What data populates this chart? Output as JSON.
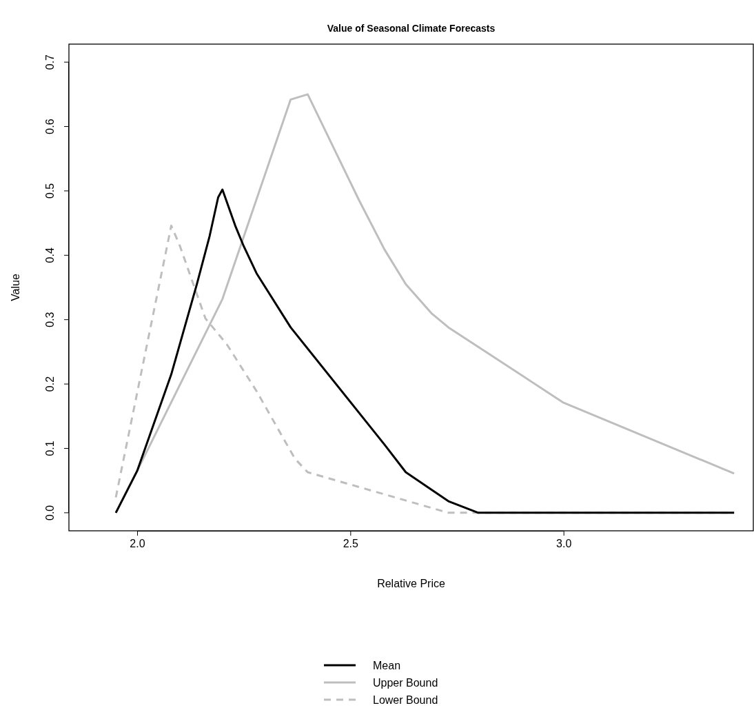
{
  "chart_data": {
    "type": "line",
    "title": "Value of Seasonal Climate Forecasts",
    "xlabel": "Relative Price",
    "ylabel": "Value",
    "xlim": [
      1.84,
      3.445
    ],
    "ylim": [
      -0.028,
      0.728
    ],
    "xticks": [
      {
        "value": 2,
        "label": "2.0"
      },
      {
        "value": 2.5,
        "label": "2.5"
      },
      {
        "value": 3,
        "label": "3.0"
      }
    ],
    "yticks": [
      {
        "value": 0,
        "label": "0.0"
      },
      {
        "value": 0.1,
        "label": "0.1"
      },
      {
        "value": 0.2,
        "label": "0.2"
      },
      {
        "value": 0.3,
        "label": "0.3"
      },
      {
        "value": 0.4,
        "label": "0.4"
      },
      {
        "value": 0.5,
        "label": "0.5"
      },
      {
        "value": 0.6,
        "label": "0.6"
      },
      {
        "value": 0.7,
        "label": "0.7"
      }
    ],
    "legend": "bottom",
    "series": [
      {
        "name": "Mean",
        "color": "#000000",
        "line_style": "solid",
        "x": [
          1.95,
          2.0,
          2.08,
          2.14,
          2.17,
          2.19,
          2.2,
          2.23,
          2.25,
          2.28,
          2.36,
          2.58,
          2.63,
          2.69,
          2.73,
          2.8,
          3.4
        ],
        "values": [
          0.0,
          0.065,
          0.215,
          0.355,
          0.43,
          0.49,
          0.502,
          0.446,
          0.414,
          0.372,
          0.288,
          0.106,
          0.063,
          0.036,
          0.018,
          0.0,
          0.0
        ]
      },
      {
        "name": "Upper Bound",
        "color": "#bebebe",
        "line_style": "solid",
        "x": [
          1.95,
          2.0,
          2.2,
          2.36,
          2.4,
          2.52,
          2.58,
          2.63,
          2.69,
          2.73,
          3.0,
          3.4
        ],
        "values": [
          0.0,
          0.065,
          0.332,
          0.642,
          0.65,
          0.486,
          0.409,
          0.355,
          0.31,
          0.288,
          0.171,
          0.061
        ]
      },
      {
        "name": "Lower Bound",
        "color": "#bebebe",
        "line_style": "dashed",
        "x": [
          1.95,
          2.08,
          2.1,
          2.16,
          2.21,
          2.28,
          2.37,
          2.4,
          2.73,
          3.4
        ],
        "values": [
          0.024,
          0.446,
          0.415,
          0.302,
          0.262,
          0.189,
          0.084,
          0.063,
          0.0,
          0.0
        ]
      }
    ]
  }
}
